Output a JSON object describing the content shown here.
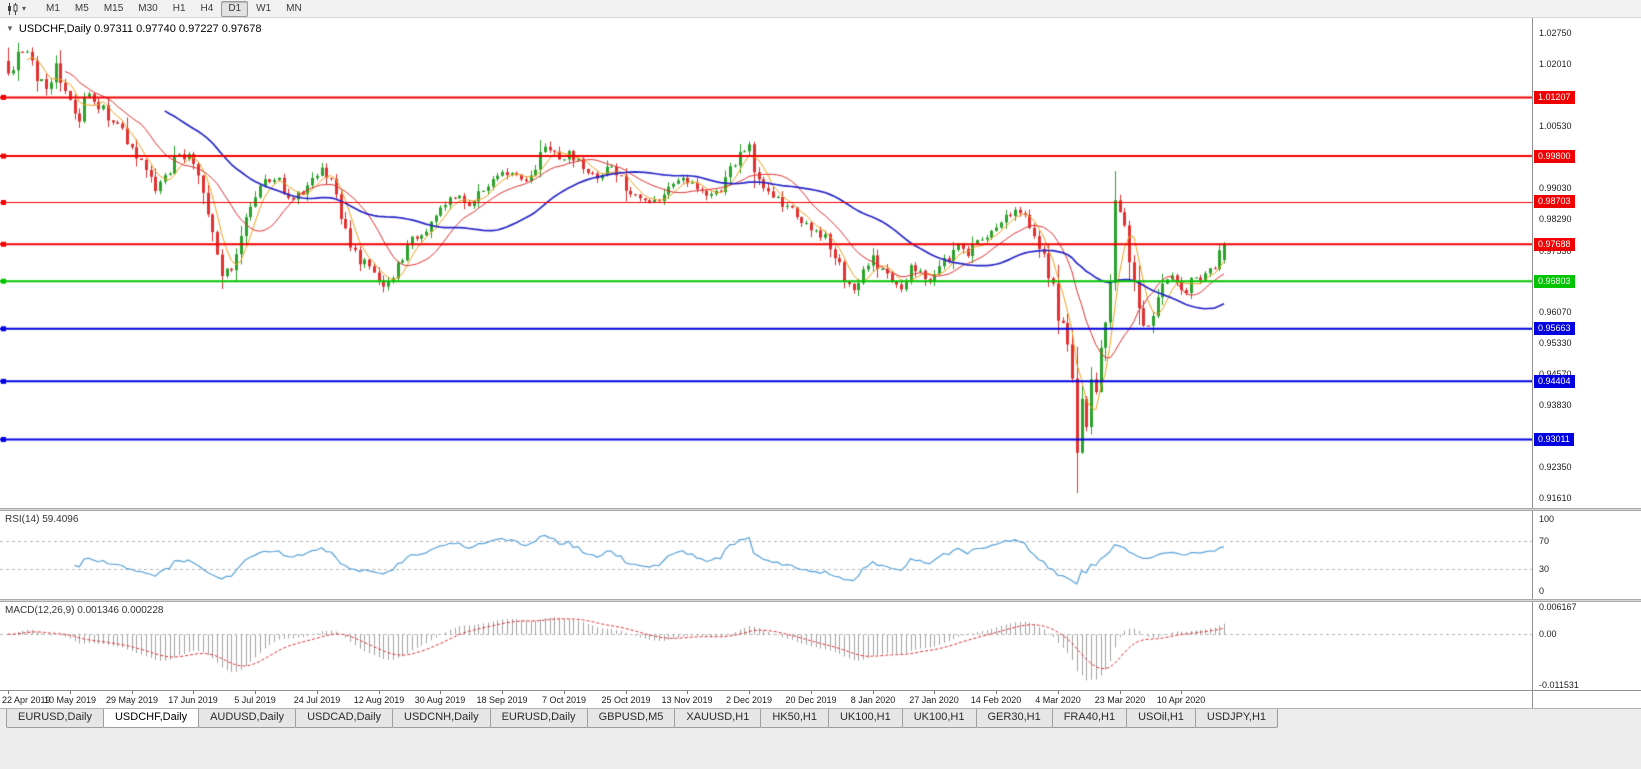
{
  "toolbar": {
    "timeframes": [
      "M1",
      "M5",
      "M15",
      "M30",
      "H1",
      "H4",
      "D1",
      "W1",
      "MN"
    ],
    "active_timeframe": "D1",
    "chart_type_icon": "candlestick-chart-icon"
  },
  "chart": {
    "title": "USDCHF,Daily 0.97311 0.97740 0.97227 0.97678",
    "symbol": "USDCHF",
    "timeframe": "Daily"
  },
  "rsi": {
    "label": "RSI(14) 59.4096",
    "axis": [
      {
        "label": "100",
        "value": 100,
        "dashed": false
      },
      {
        "label": "70",
        "value": 70,
        "dashed": true
      },
      {
        "label": "30",
        "value": 30,
        "dashed": true
      },
      {
        "label": "0",
        "value": 0,
        "dashed": false
      }
    ]
  },
  "macd": {
    "label": "MACD(12,26,9) 0.001346 0.000228",
    "axis": [
      {
        "label": "0.006167",
        "value": 0.006167
      },
      {
        "label": "0.00",
        "value": 0
      },
      {
        "label": "-0.011531",
        "value": -0.011531
      }
    ]
  },
  "date_axis": {
    "labels": [
      "22 Apr 2019",
      "10 May 2019",
      "29 May 2019",
      "17 Jun 2019",
      "5 Jul 2019",
      "24 Jul 2019",
      "12 Aug 2019",
      "30 Aug 2019",
      "18 Sep 2019",
      "7 Oct 2019",
      "25 Oct 2019",
      "13 Nov 2019",
      "2 Dec 2019",
      "20 Dec 2019",
      "8 Jan 2020",
      "27 Jan 2020",
      "14 Feb 2020",
      "4 Mar 2020",
      "23 Mar 2020",
      "10 Apr 2020"
    ],
    "bars_per_label": 13
  },
  "tabs": {
    "items": [
      "EURUSD,Daily",
      "USDCHF,Daily",
      "AUDUSD,Daily",
      "USDCAD,Daily",
      "USDCNH,Daily",
      "EURUSD,Daily",
      "GBPUSD,M5",
      "XAUUSD,H1",
      "HK50,H1",
      "UK100,H1",
      "UK100,H1",
      "GER30,H1",
      "FRA40,H1",
      "USOil,H1",
      "USDJPY,H1"
    ],
    "active_index": 1
  },
  "chart_data": {
    "type": "candlestick",
    "symbol": "USDCHF",
    "timeframe": "Daily",
    "ohlc_last": {
      "open": 0.97311,
      "high": 0.9774,
      "low": 0.97227,
      "close": 0.97678
    },
    "bar_count": 257,
    "close_anchors": [
      [
        0,
        1.0175
      ],
      [
        2,
        1.0225
      ],
      [
        4,
        1.0225
      ],
      [
        6,
        1.017
      ],
      [
        8,
        1.015
      ],
      [
        10,
        1.0185
      ],
      [
        13,
        1.0105
      ],
      [
        15,
        1.008
      ],
      [
        17,
        1.013
      ],
      [
        20,
        1.009
      ],
      [
        23,
        1.005
      ],
      [
        26,
        1.0
      ],
      [
        29,
        0.996
      ],
      [
        31,
        0.9905
      ],
      [
        33,
        0.993
      ],
      [
        36,
        0.999
      ],
      [
        38,
        0.9975
      ],
      [
        40,
        0.994
      ],
      [
        42,
        0.986
      ],
      [
        44,
        0.975
      ],
      [
        45,
        0.97
      ],
      [
        47,
        0.972
      ],
      [
        49,
        0.979
      ],
      [
        52,
        0.9885
      ],
      [
        54,
        0.992
      ],
      [
        56,
        0.9935
      ],
      [
        58,
        0.989
      ],
      [
        60,
        0.987
      ],
      [
        63,
        0.991
      ],
      [
        66,
        0.994
      ],
      [
        68,
        0.9905
      ],
      [
        70,
        0.984
      ],
      [
        72,
        0.9775
      ],
      [
        74,
        0.973
      ],
      [
        76,
        0.972
      ],
      [
        78,
        0.968
      ],
      [
        79,
        0.9662
      ],
      [
        81,
        0.97
      ],
      [
        83,
        0.9745
      ],
      [
        85,
        0.978
      ],
      [
        87,
        0.98
      ],
      [
        89,
        0.982
      ],
      [
        91,
        0.9855
      ],
      [
        94,
        0.988
      ],
      [
        97,
        0.987
      ],
      [
        100,
        0.9905
      ],
      [
        103,
        0.993
      ],
      [
        106,
        0.995
      ],
      [
        108,
        0.9915
      ],
      [
        110,
        0.994
      ],
      [
        112,
        0.999
      ],
      [
        114,
        1.0005
      ],
      [
        116,
        0.996
      ],
      [
        118,
        0.9985
      ],
      [
        121,
        0.995
      ],
      [
        124,
        0.993
      ],
      [
        127,
        0.996
      ],
      [
        130,
        0.99
      ],
      [
        133,
        0.988
      ],
      [
        136,
        0.9865
      ],
      [
        139,
        0.9905
      ],
      [
        142,
        0.993
      ],
      [
        145,
        0.99
      ],
      [
        148,
        0.988
      ],
      [
        151,
        0.992
      ],
      [
        154,
        0.9985
      ],
      [
        156,
        0.9995
      ],
      [
        158,
        0.993
      ],
      [
        160,
        0.99
      ],
      [
        163,
        0.987
      ],
      [
        166,
        0.984
      ],
      [
        169,
        0.9805
      ],
      [
        172,
        0.978
      ],
      [
        174,
        0.9735
      ],
      [
        176,
        0.969
      ],
      [
        178,
        0.9665
      ],
      [
        180,
        0.971
      ],
      [
        182,
        0.974
      ],
      [
        184,
        0.97
      ],
      [
        186,
        0.968
      ],
      [
        188,
        0.9672
      ],
      [
        190,
        0.971
      ],
      [
        192,
        0.97
      ],
      [
        194,
        0.9685
      ],
      [
        196,
        0.9715
      ],
      [
        198,
        0.974
      ],
      [
        200,
        0.9762
      ],
      [
        202,
        0.9745
      ],
      [
        204,
        0.9775
      ],
      [
        206,
        0.979
      ],
      [
        208,
        0.98
      ],
      [
        210,
        0.983
      ],
      [
        212,
        0.9845
      ],
      [
        214,
        0.9825
      ],
      [
        216,
        0.979
      ],
      [
        218,
        0.974
      ],
      [
        220,
        0.965
      ],
      [
        222,
        0.957
      ],
      [
        224,
        0.944
      ],
      [
        225,
        0.927
      ],
      [
        226,
        0.938
      ],
      [
        227,
        0.934
      ],
      [
        228,
        0.944
      ],
      [
        229,
        0.941
      ],
      [
        230,
        0.95
      ],
      [
        231,
        0.956
      ],
      [
        232,
        0.97
      ],
      [
        233,
        0.986
      ],
      [
        234,
        0.983
      ],
      [
        235,
        0.979
      ],
      [
        236,
        0.974
      ],
      [
        237,
        0.968
      ],
      [
        238,
        0.963
      ],
      [
        239,
        0.958
      ],
      [
        240,
        0.9555
      ],
      [
        241,
        0.96
      ],
      [
        242,
        0.9645
      ],
      [
        243,
        0.9665
      ],
      [
        244,
        0.968
      ],
      [
        245,
        0.97
      ],
      [
        246,
        0.969
      ],
      [
        247,
        0.9655
      ],
      [
        248,
        0.966
      ],
      [
        249,
        0.968
      ],
      [
        250,
        0.97
      ],
      [
        251,
        0.969
      ],
      [
        252,
        0.9705
      ],
      [
        253,
        0.9715
      ],
      [
        254,
        0.972
      ],
      [
        255,
        0.9735
      ],
      [
        256,
        0.9768
      ]
    ],
    "extremes": [
      {
        "bar": 0,
        "high": 1.024
      },
      {
        "bar": 2,
        "high": 1.0252
      },
      {
        "bar": 4,
        "high": 1.0226
      },
      {
        "bar": 45,
        "low": 0.9693
      },
      {
        "bar": 79,
        "low": 0.9659
      },
      {
        "bar": 114,
        "high": 1.0015
      },
      {
        "bar": 225,
        "low": 0.9173
      },
      {
        "bar": 233,
        "high": 0.9901
      }
    ],
    "last_candle": {
      "o": 0.97311,
      "h": 0.9774,
      "l": 0.97227,
      "c": 0.97678
    },
    "levels": [
      {
        "price": 1.01207,
        "label": "1.01207",
        "color": "#f00000",
        "width": 2
      },
      {
        "price": 0.998,
        "label": "0.99800",
        "color": "#f00000",
        "width": 2
      },
      {
        "price": 0.98703,
        "label": "0.98703",
        "color": "#f00000",
        "width": 1
      },
      {
        "price": 0.97688,
        "label": "0.97688",
        "color": "#f00000",
        "width": 2
      },
      {
        "price": 0.96803,
        "label": "0.96803",
        "color": "#00c400",
        "width": 2
      },
      {
        "price": 0.95663,
        "label": "0.95663",
        "color": "#0000e0",
        "width": 2
      },
      {
        "price": 0.94404,
        "label": "0.94404",
        "color": "#0000e0",
        "width": 2
      },
      {
        "price": 0.93011,
        "label": "0.93011",
        "color": "#0000e0",
        "width": 2
      }
    ],
    "y_axis_labels": [
      {
        "label": "1.02750",
        "price": 1.0275
      },
      {
        "label": "1.02010",
        "price": 1.0201
      },
      {
        "label": "1.00530",
        "price": 1.0053
      },
      {
        "label": "0.99030",
        "price": 0.9903
      },
      {
        "label": "0.98290",
        "price": 0.9829
      },
      {
        "label": "0.97530",
        "price": 0.9753
      },
      {
        "label": "0.96070",
        "price": 0.9607
      },
      {
        "label": "0.95330",
        "price": 0.9533
      },
      {
        "label": "0.94570",
        "price": 0.9457
      },
      {
        "label": "0.93830",
        "price": 0.9383
      },
      {
        "label": "0.92350",
        "price": 0.9235
      },
      {
        "label": "0.91610",
        "price": 0.9161
      }
    ],
    "moving_averages": [
      {
        "period": 5,
        "color": "#f0a020",
        "width": 1
      },
      {
        "period": 13,
        "color": "#e03232",
        "width": 1
      },
      {
        "period": 34,
        "color": "#2626c8",
        "width": 1.7
      }
    ],
    "indicators": {
      "rsi": {
        "period": 14,
        "last_value": 59.4096
      },
      "macd": {
        "fast": 12,
        "slow": 26,
        "signal": 9,
        "last_macd": 0.001346,
        "last_signal": 0.000228
      }
    },
    "colors": {
      "bull": "#2ca22c",
      "bear": "#e03232",
      "rsi_line": "#5ba3d9",
      "macd_hist": "#a2a2a2",
      "macd_signal": "#e03232",
      "level_dash_gray": "#b8b8b8",
      "axis_border": "#8f8f8f"
    }
  }
}
